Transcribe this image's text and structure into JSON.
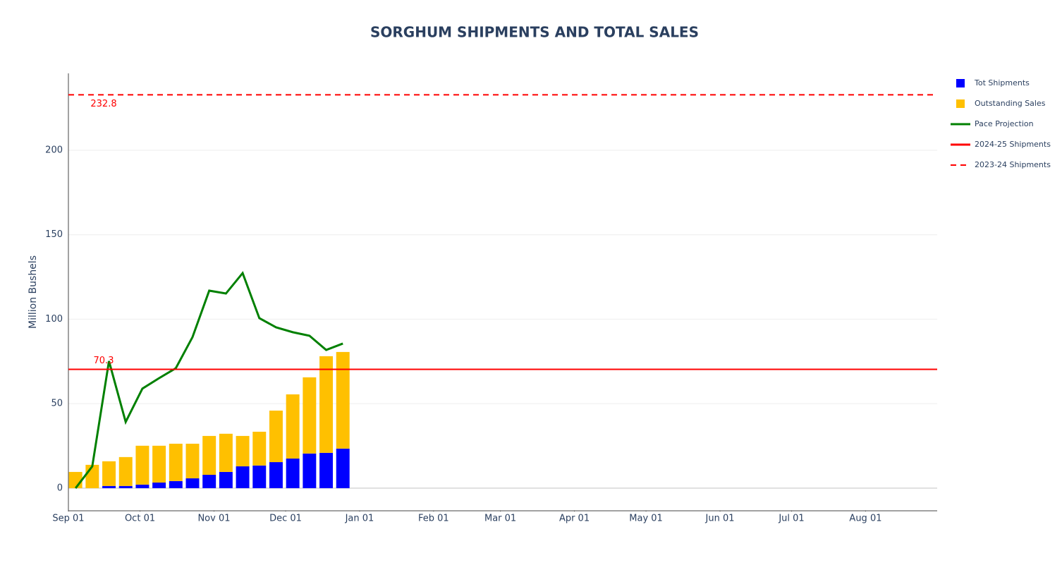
{
  "chart_data": {
    "type": "bar",
    "title": "SORGHUM SHIPMENTS AND TOTAL SALES",
    "y_label": "Million Bushels",
    "barmode": "stack",
    "x": [
      3,
      10,
      17,
      24,
      31,
      38,
      45,
      52,
      59,
      66,
      73,
      80,
      87,
      94,
      101,
      108,
      115
    ],
    "xlim": [
      0,
      364
    ],
    "xticks": [
      {
        "value": 0,
        "label": "Sep 01"
      },
      {
        "value": 30,
        "label": "Oct 01"
      },
      {
        "value": 61,
        "label": "Nov 01"
      },
      {
        "value": 91,
        "label": "Dec 01"
      },
      {
        "value": 122,
        "label": "Jan 01"
      },
      {
        "value": 153,
        "label": "Feb 01"
      },
      {
        "value": 181,
        "label": "Mar 01"
      },
      {
        "value": 212,
        "label": "Apr 01"
      },
      {
        "value": 242,
        "label": "May 01"
      },
      {
        "value": 273,
        "label": "Jun 01"
      },
      {
        "value": 303,
        "label": "Jul 01"
      },
      {
        "value": 334,
        "label": "Aug 01"
      }
    ],
    "ylim": [
      -13.4,
      245.5
    ],
    "yticks": [
      0,
      50,
      100,
      150,
      200
    ],
    "grid": true,
    "series": [
      {
        "name": "Tot Shipments",
        "type": "bar",
        "color": "#0000ff",
        "values": [
          0,
          0,
          1.3,
          1.3,
          2.1,
          3.3,
          4.2,
          5.8,
          7.9,
          9.6,
          12.9,
          13.4,
          15.4,
          17.5,
          20.5,
          20.9,
          23.4
        ]
      },
      {
        "name": "Outstanding Sales",
        "type": "bar",
        "color": "#ffc000",
        "values": [
          9.6,
          13.8,
          14.6,
          17.1,
          23.0,
          21.8,
          22.1,
          20.5,
          23.0,
          22.6,
          18.0,
          20.0,
          30.5,
          38.0,
          45.1,
          57.2,
          57.2
        ]
      },
      {
        "name": "Pace Projection",
        "type": "line",
        "color": "#008000",
        "values": [
          0,
          12.9,
          75.2,
          39.2,
          58.9,
          65.1,
          71.0,
          89.4,
          116.9,
          115.2,
          127.3,
          100.6,
          95.2,
          92.3,
          90.2,
          81.8,
          85.6
        ]
      }
    ],
    "hlines": [
      {
        "name": "2024-25 Shipments",
        "value": 70.3,
        "color": "#ff0000",
        "dash": "solid"
      },
      {
        "name": "2023-24 Shipments",
        "value": 232.8,
        "color": "#ff0000",
        "dash": "dash"
      }
    ]
  }
}
